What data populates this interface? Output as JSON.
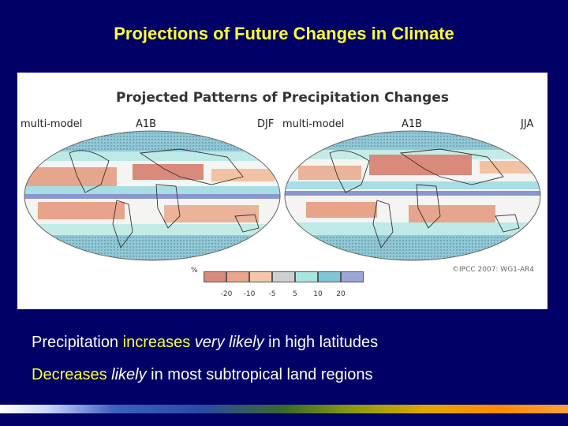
{
  "slide": {
    "title": "Projections of Future Changes in Climate"
  },
  "figure": {
    "title": "Projected Patterns of Precipitation Changes",
    "left_panel": {
      "model": "multi-model",
      "scenario": "A1B",
      "season": "DJF"
    },
    "right_panel": {
      "model": "multi-model",
      "scenario": "A1B",
      "season": "JJA"
    },
    "colorbar": {
      "unit": "%",
      "ticks": [
        "-20",
        "-10",
        "-5",
        "5",
        "10",
        "20"
      ],
      "colors": [
        "#d98a7a",
        "#e9a58a",
        "#f4c7a8",
        "#cfcfcf",
        "#a8e4e0",
        "#7fc6d8",
        "#9aa6d6"
      ]
    },
    "credit": "©IPCC 2007: WG1-AR4"
  },
  "bullets": {
    "b1": {
      "p1": "Precipitation ",
      "p2": "increases",
      "p3": " very likely",
      "p4": " in high latitudes"
    },
    "b2": {
      "p1": "Decreases",
      "p2": " likely",
      "p3": " in most subtropical land regions"
    }
  }
}
